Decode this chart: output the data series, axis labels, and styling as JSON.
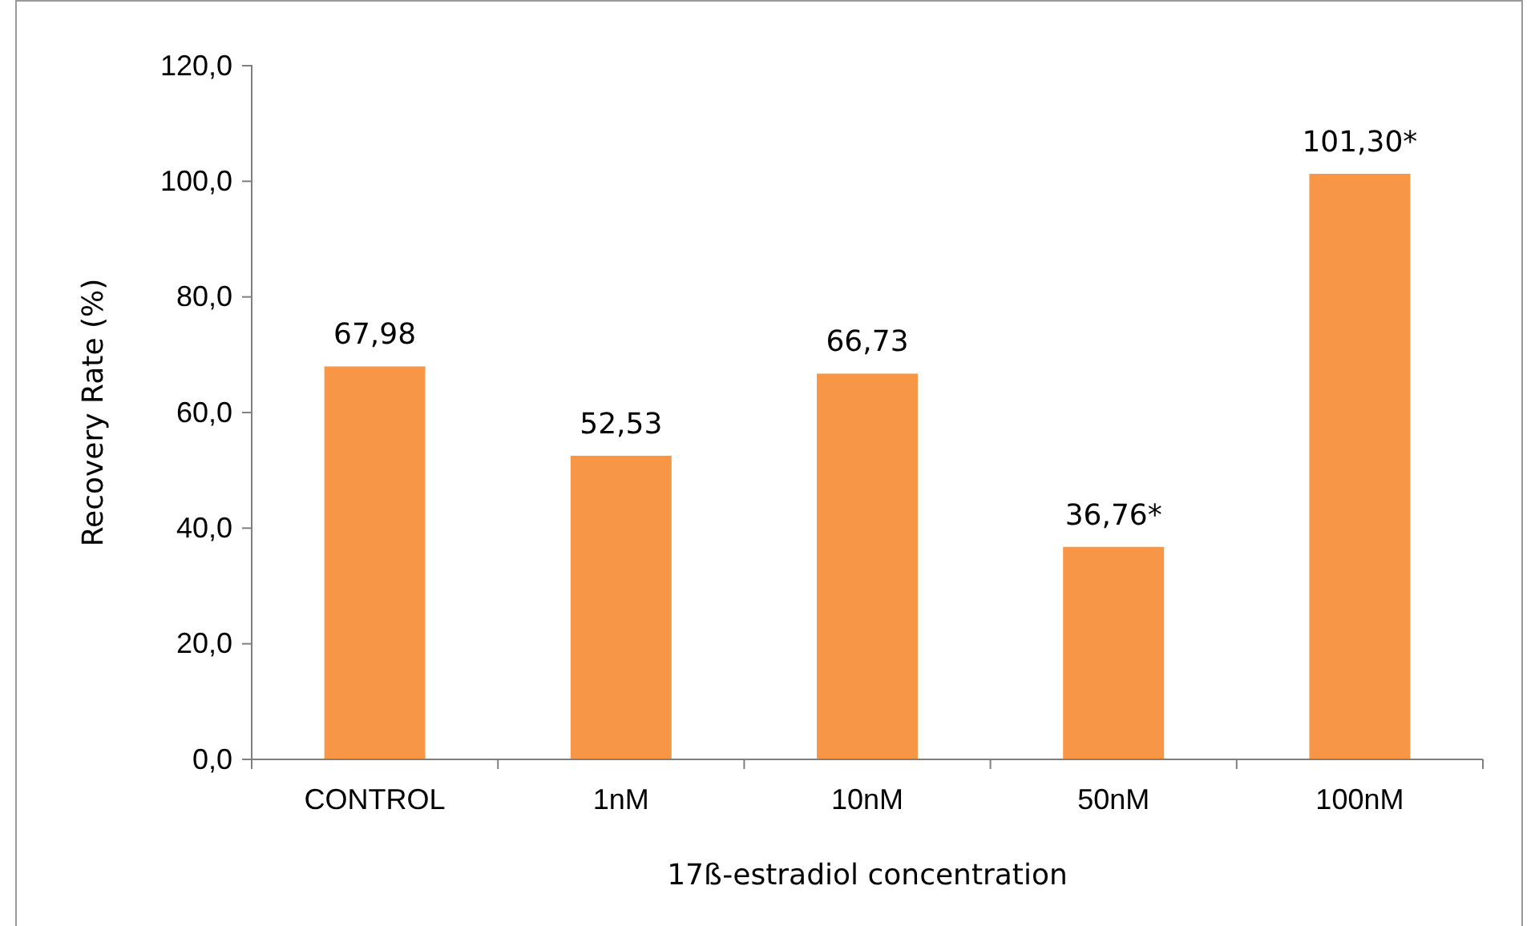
{
  "chart_data": {
    "type": "bar",
    "xlabel": "17ß-estradiol concentration",
    "ylabel": "Recovery Rate (%)",
    "categories": [
      "CONTROL",
      "1nM",
      "10nM",
      "50nM",
      "100nM"
    ],
    "values": [
      67.98,
      52.53,
      66.73,
      36.76,
      101.3
    ],
    "value_labels": [
      "67,98",
      "52,53",
      "66,73",
      "36,76*",
      "101,30*"
    ],
    "color": "#f79646",
    "ylim": [
      0,
      120
    ],
    "yticks": [
      {
        "value": 0,
        "label": "0,0"
      },
      {
        "value": 20,
        "label": "20,0"
      },
      {
        "value": 40,
        "label": "40,0"
      },
      {
        "value": 60,
        "label": "60,0"
      },
      {
        "value": 80,
        "label": "80,0"
      },
      {
        "value": 100,
        "label": "100,0"
      },
      {
        "value": 120,
        "label": "120,0"
      }
    ],
    "grid": false
  }
}
